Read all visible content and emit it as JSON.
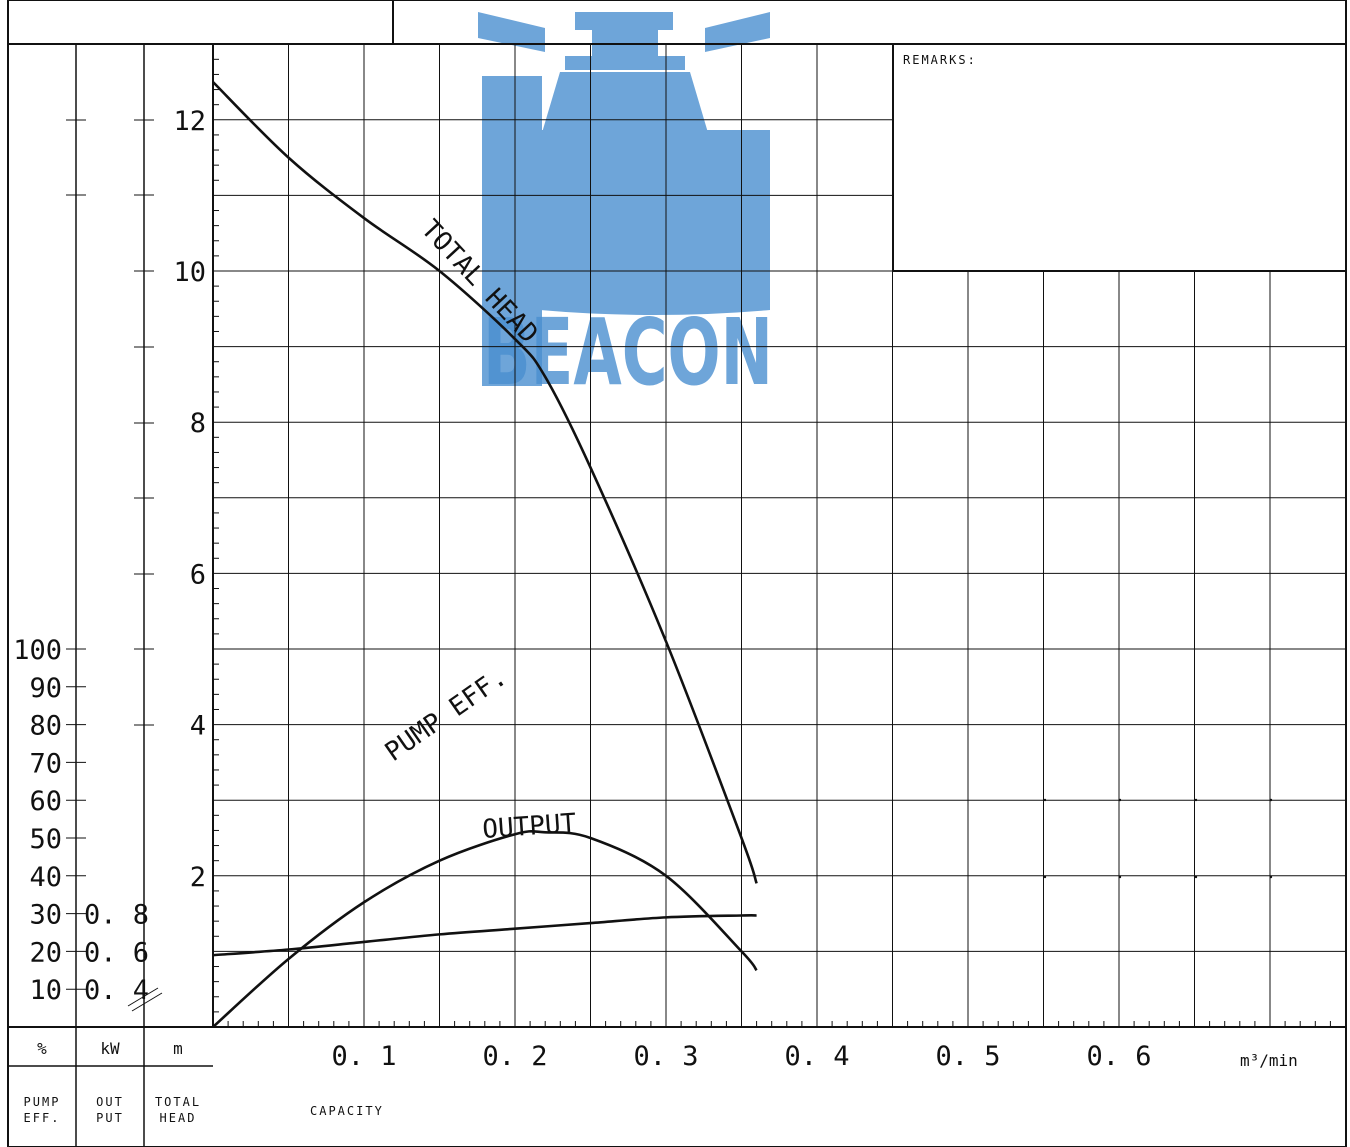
{
  "chart_data": {
    "type": "line",
    "x_label": "CAPACITY",
    "x_unit": "m³/min",
    "x_ticks": [
      0.1,
      0.2,
      0.3,
      0.4,
      0.5,
      0.6
    ],
    "x_tick_labels": [
      "0. 1",
      "0. 2",
      "0. 3",
      "0. 4",
      "0. 5",
      "0. 6"
    ],
    "xlim": [
      0,
      0.75
    ],
    "axes": {
      "efficiency": {
        "unit": "%",
        "label": "PUMP EFF.",
        "ticks": [
          10,
          20,
          30,
          40,
          50,
          60,
          70,
          80,
          90,
          100
        ],
        "ylim": [
          0,
          250
        ]
      },
      "output": {
        "unit": "kW",
        "label": "OUT PUT",
        "ticks": [
          0.4,
          0.6,
          0.8
        ],
        "tick_labels": [
          "0. 4",
          "0. 6",
          "0. 8"
        ]
      },
      "head": {
        "unit": "m",
        "label": "TOTAL HEAD",
        "ticks": [
          2,
          4,
          6,
          8,
          10,
          12
        ],
        "ylim": [
          0,
          12.5
        ]
      }
    },
    "series": [
      {
        "name": "TOTAL HEAD",
        "axis": "head",
        "x": [
          0,
          0.05,
          0.1,
          0.15,
          0.2,
          0.22,
          0.25,
          0.3,
          0.35,
          0.36
        ],
        "y": [
          12.5,
          11.5,
          10.7,
          10.0,
          9.1,
          8.6,
          7.4,
          5.1,
          2.5,
          1.9
        ]
      },
      {
        "name": "PUMP EFF.",
        "axis": "efficiency",
        "x": [
          0,
          0.05,
          0.1,
          0.15,
          0.2,
          0.22,
          0.25,
          0.3,
          0.35,
          0.36
        ],
        "y": [
          0,
          18,
          33,
          44,
          51,
          51.5,
          50,
          40,
          20,
          15
        ]
      },
      {
        "name": "OUTPUT",
        "axis": "efficiency",
        "x": [
          0,
          0.05,
          0.1,
          0.15,
          0.2,
          0.25,
          0.3,
          0.35,
          0.36
        ],
        "y": [
          19,
          20.5,
          22.5,
          24.5,
          26,
          27.5,
          29,
          29.5,
          29.5
        ]
      }
    ]
  },
  "header": {
    "remarks_label": "REMARKS:",
    "pump_eff_header": [
      "PUMP",
      "EFF."
    ],
    "output_header": [
      "OUT",
      "PUT"
    ],
    "head_header": [
      "TOTAL",
      "HEAD"
    ]
  },
  "watermark": {
    "text": "BEACON"
  },
  "colors": {
    "ink": "#111111",
    "watermark": "#4a8fd0"
  }
}
